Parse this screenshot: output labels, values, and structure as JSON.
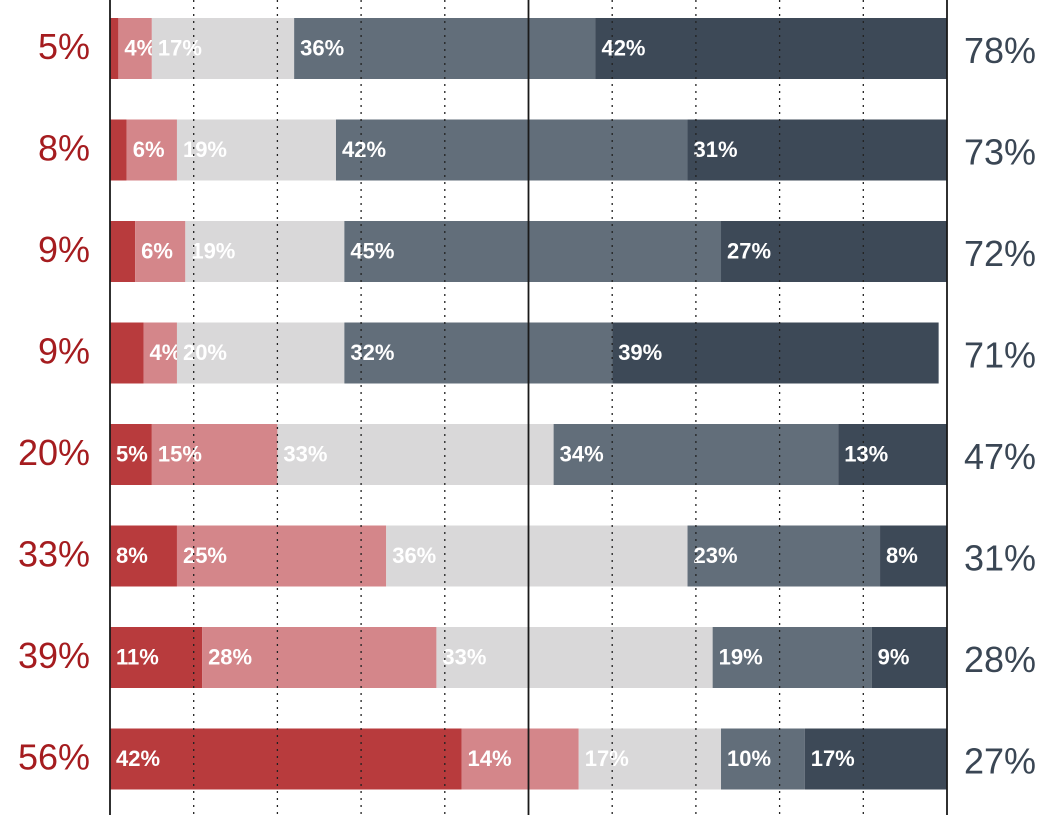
{
  "chart_data": {
    "type": "bar",
    "orientation": "horizontal",
    "stacked": true,
    "normalized_percent": true,
    "title": "",
    "xlabel": "",
    "ylabel": "",
    "xlim": [
      0,
      100
    ],
    "grid": true,
    "series_colors": [
      "#b83b3d",
      "#d4868a",
      "#d9d8d9",
      "#626e7a",
      "#3d4957"
    ],
    "left_total_color": "#a51c1f",
    "right_total_color": "#3a4654",
    "rows": [
      {
        "left_total": "5%",
        "right_total": "78%",
        "values": [
          1,
          4,
          17,
          36,
          42
        ],
        "labels": [
          "",
          "4%",
          "17%",
          "36%",
          "42%"
        ]
      },
      {
        "left_total": "8%",
        "right_total": "73%",
        "values": [
          2,
          6,
          19,
          42,
          31
        ],
        "labels": [
          "",
          "6%",
          "19%",
          "42%",
          "31%"
        ]
      },
      {
        "left_total": "9%",
        "right_total": "72%",
        "values": [
          3,
          6,
          19,
          45,
          27
        ],
        "labels": [
          "",
          "6%",
          "19%",
          "45%",
          "27%"
        ]
      },
      {
        "left_total": "9%",
        "right_total": "71%",
        "values": [
          4,
          4,
          20,
          32,
          39
        ],
        "labels": [
          "",
          "4%",
          "20%",
          "32%",
          "39%"
        ]
      },
      {
        "left_total": "20%",
        "right_total": "47%",
        "values": [
          5,
          15,
          33,
          34,
          13
        ],
        "labels": [
          "5%",
          "15%",
          "33%",
          "34%",
          "13%"
        ]
      },
      {
        "left_total": "33%",
        "right_total": "31%",
        "values": [
          8,
          25,
          36,
          23,
          8
        ],
        "labels": [
          "8%",
          "25%",
          "36%",
          "23%",
          "8%"
        ]
      },
      {
        "left_total": "39%",
        "right_total": "28%",
        "values": [
          11,
          28,
          33,
          19,
          9
        ],
        "labels": [
          "11%",
          "28%",
          "33%",
          "19%",
          "9%"
        ]
      },
      {
        "left_total": "56%",
        "right_total": "27%",
        "values": [
          42,
          14,
          17,
          10,
          17
        ],
        "labels": [
          "42%",
          "14%",
          "17%",
          "10%",
          "17%"
        ]
      }
    ]
  }
}
